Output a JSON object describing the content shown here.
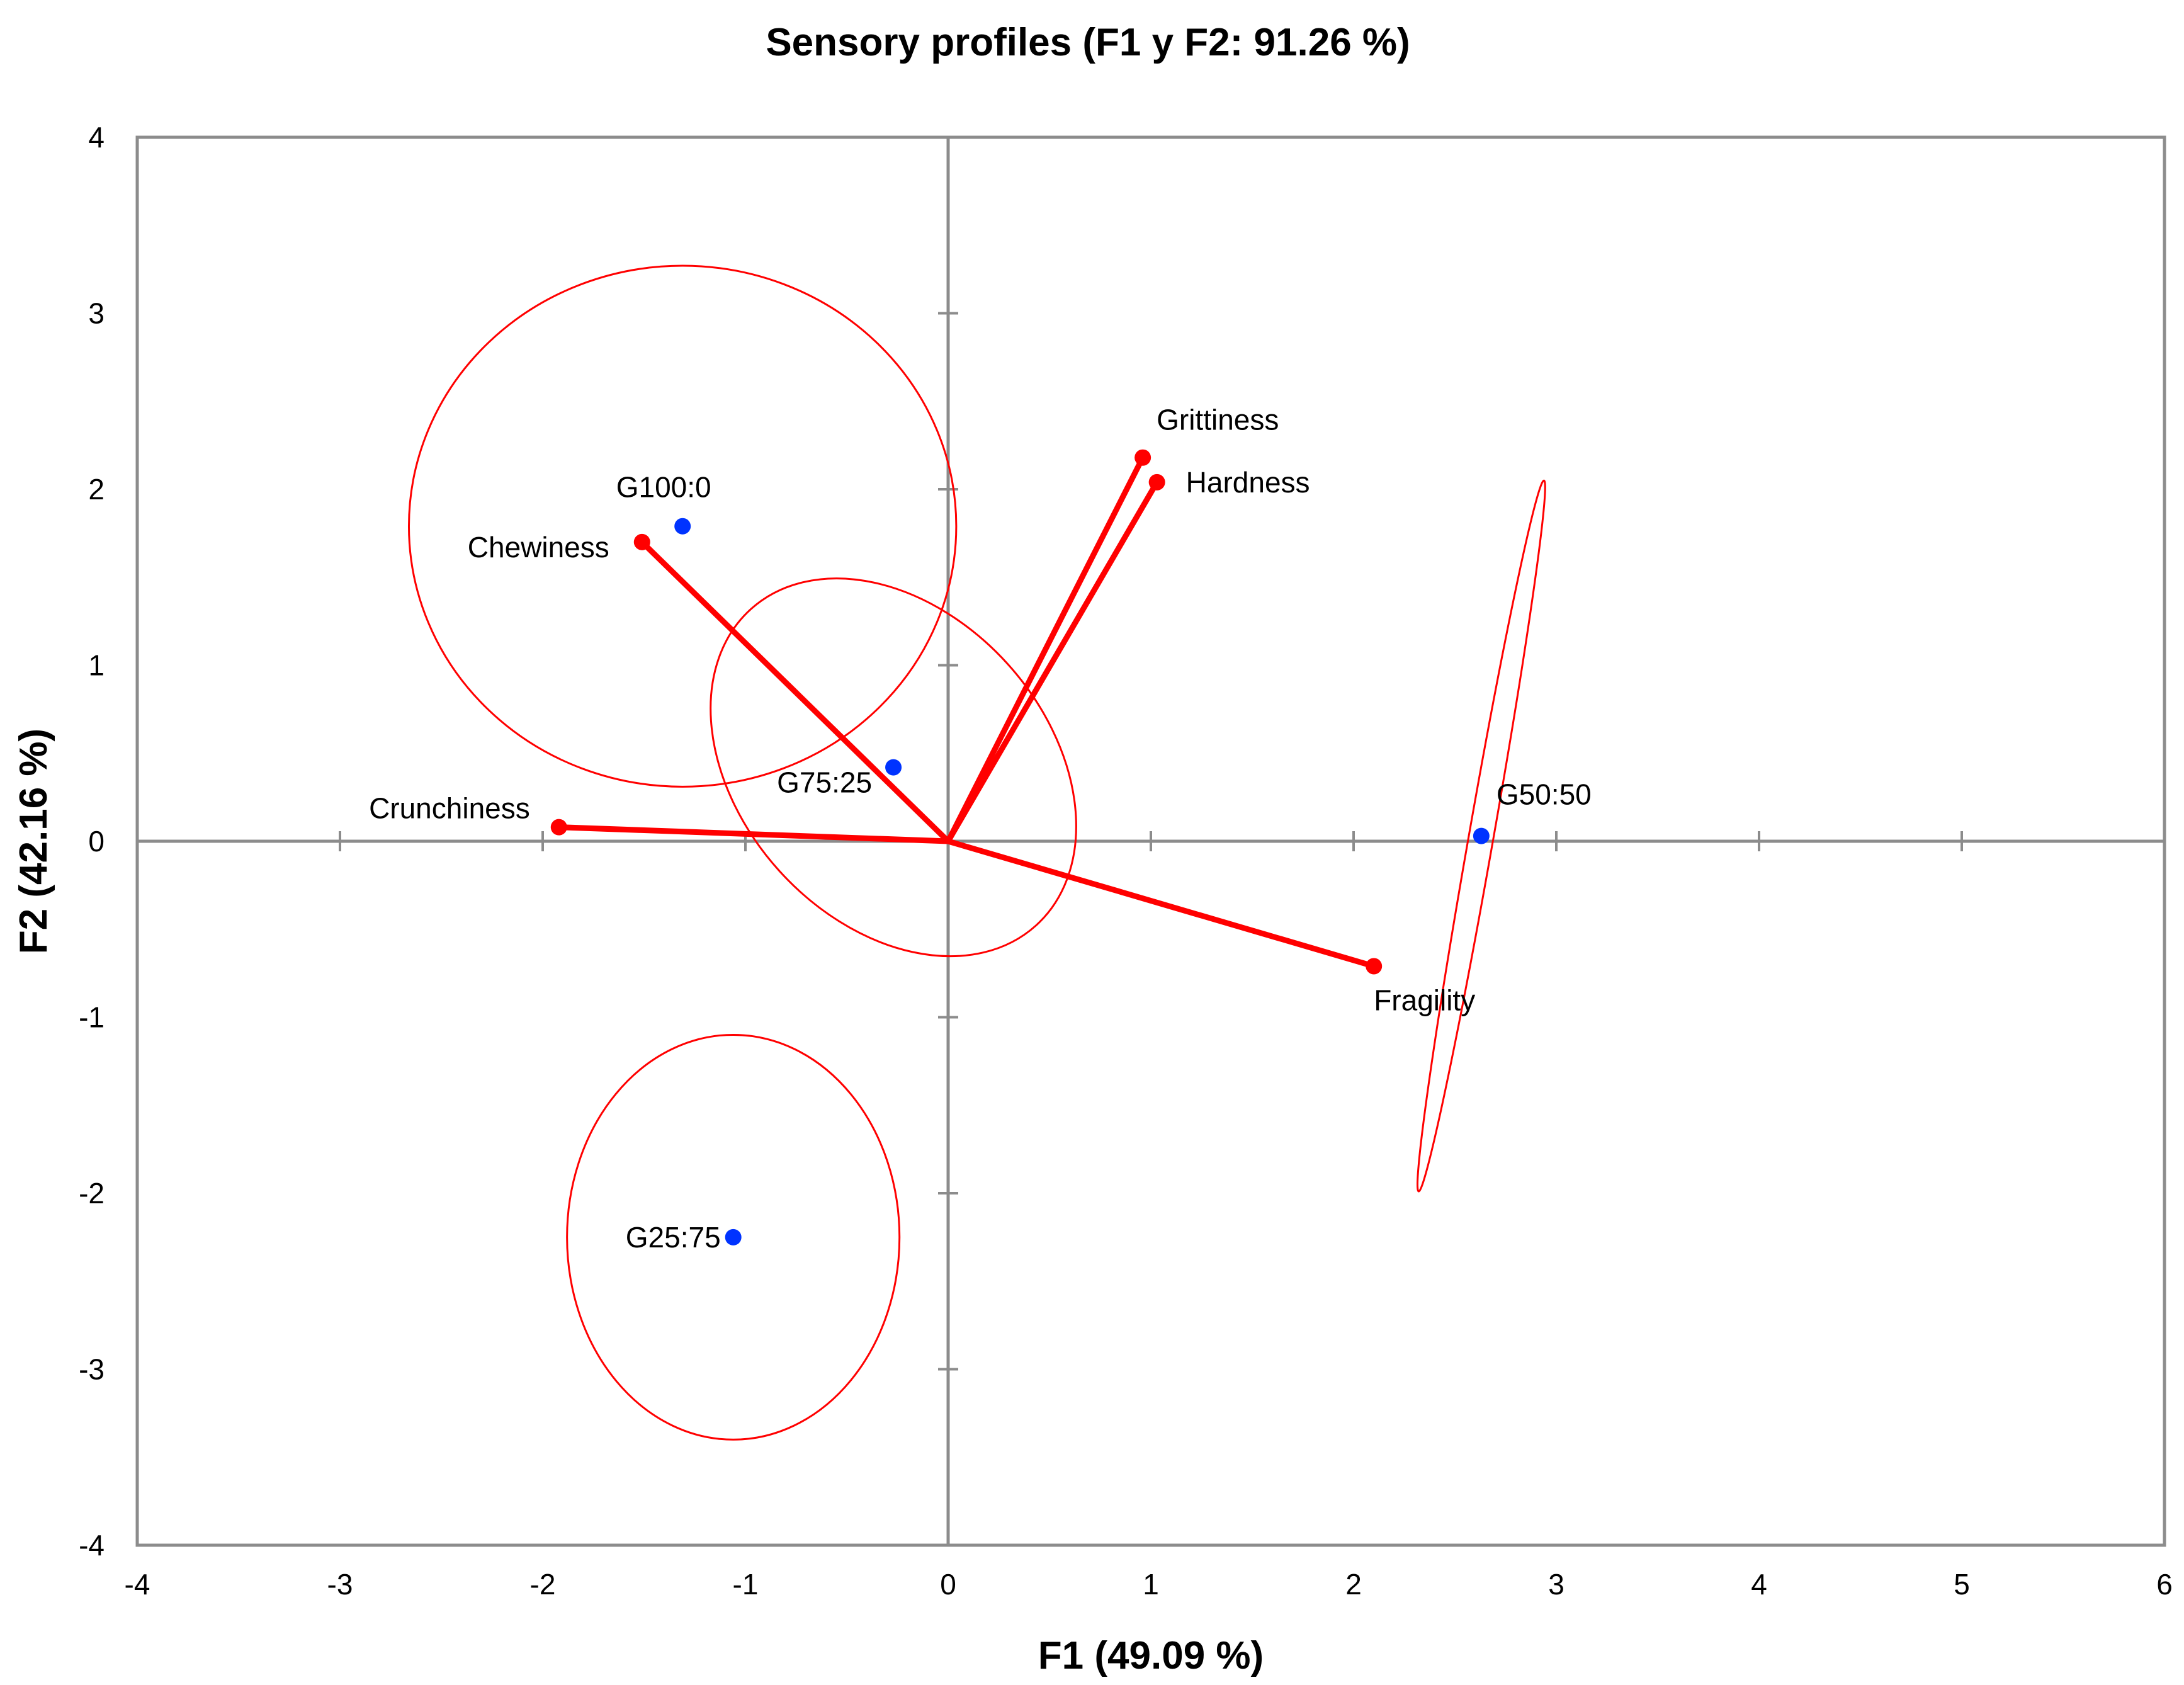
{
  "chart_data": {
    "type": "scatter",
    "title": "Sensory profiles (F1 y F2: 91.26 %)",
    "xlabel": "F1 (49.09 %)",
    "ylabel": "F2 (42.16 %)",
    "xlim": [
      -4,
      6
    ],
    "ylim": [
      -4,
      4
    ],
    "x_ticks": [
      "-4",
      "-3",
      "-2",
      "-1",
      "0",
      "1",
      "2",
      "3",
      "4",
      "5",
      "6"
    ],
    "y_ticks": [
      "4",
      "3",
      "2",
      "1",
      "0",
      "-1",
      "-2",
      "-3",
      "-4"
    ],
    "grid": false,
    "variables": [
      {
        "label": "Grittiness",
        "x": 0.96,
        "y": 2.18
      },
      {
        "label": "Hardness",
        "x": 1.03,
        "y": 2.04
      },
      {
        "label": "Chewiness",
        "x": -1.51,
        "y": 1.7
      },
      {
        "label": "Crunchiness",
        "x": -1.92,
        "y": 0.08
      },
      {
        "label": "Fragility",
        "x": 2.1,
        "y": -0.71
      }
    ],
    "observations": [
      {
        "label": "G100:0",
        "x": -1.31,
        "y": 1.79
      },
      {
        "label": "G75:25",
        "x": -0.27,
        "y": 0.42
      },
      {
        "label": "G50:50",
        "x": 2.63,
        "y": 0.03
      },
      {
        "label": "G25:75",
        "x": -1.06,
        "y": -2.25
      }
    ],
    "confidence_ellipses": [
      {
        "group": "G100:0",
        "cx": -1.31,
        "cy": 1.79,
        "rx": 1.35,
        "ry": 1.48,
        "angle": 0
      },
      {
        "group": "G75:25",
        "cx": -0.27,
        "cy": 0.42,
        "rx": 0.76,
        "ry": 1.21,
        "angle": -42
      },
      {
        "group": "G50:50",
        "cx": 2.63,
        "cy": 0.03,
        "rx": 1.78,
        "ry": 0.07,
        "angle": -80
      },
      {
        "group": "G25:75",
        "cx": -1.06,
        "cy": -2.25,
        "rx": 0.82,
        "ry": 1.15,
        "angle": 0
      }
    ],
    "colors": {
      "variables": "#ff0000",
      "observations": "#0033ff",
      "axes": "#8c8c8c"
    }
  }
}
